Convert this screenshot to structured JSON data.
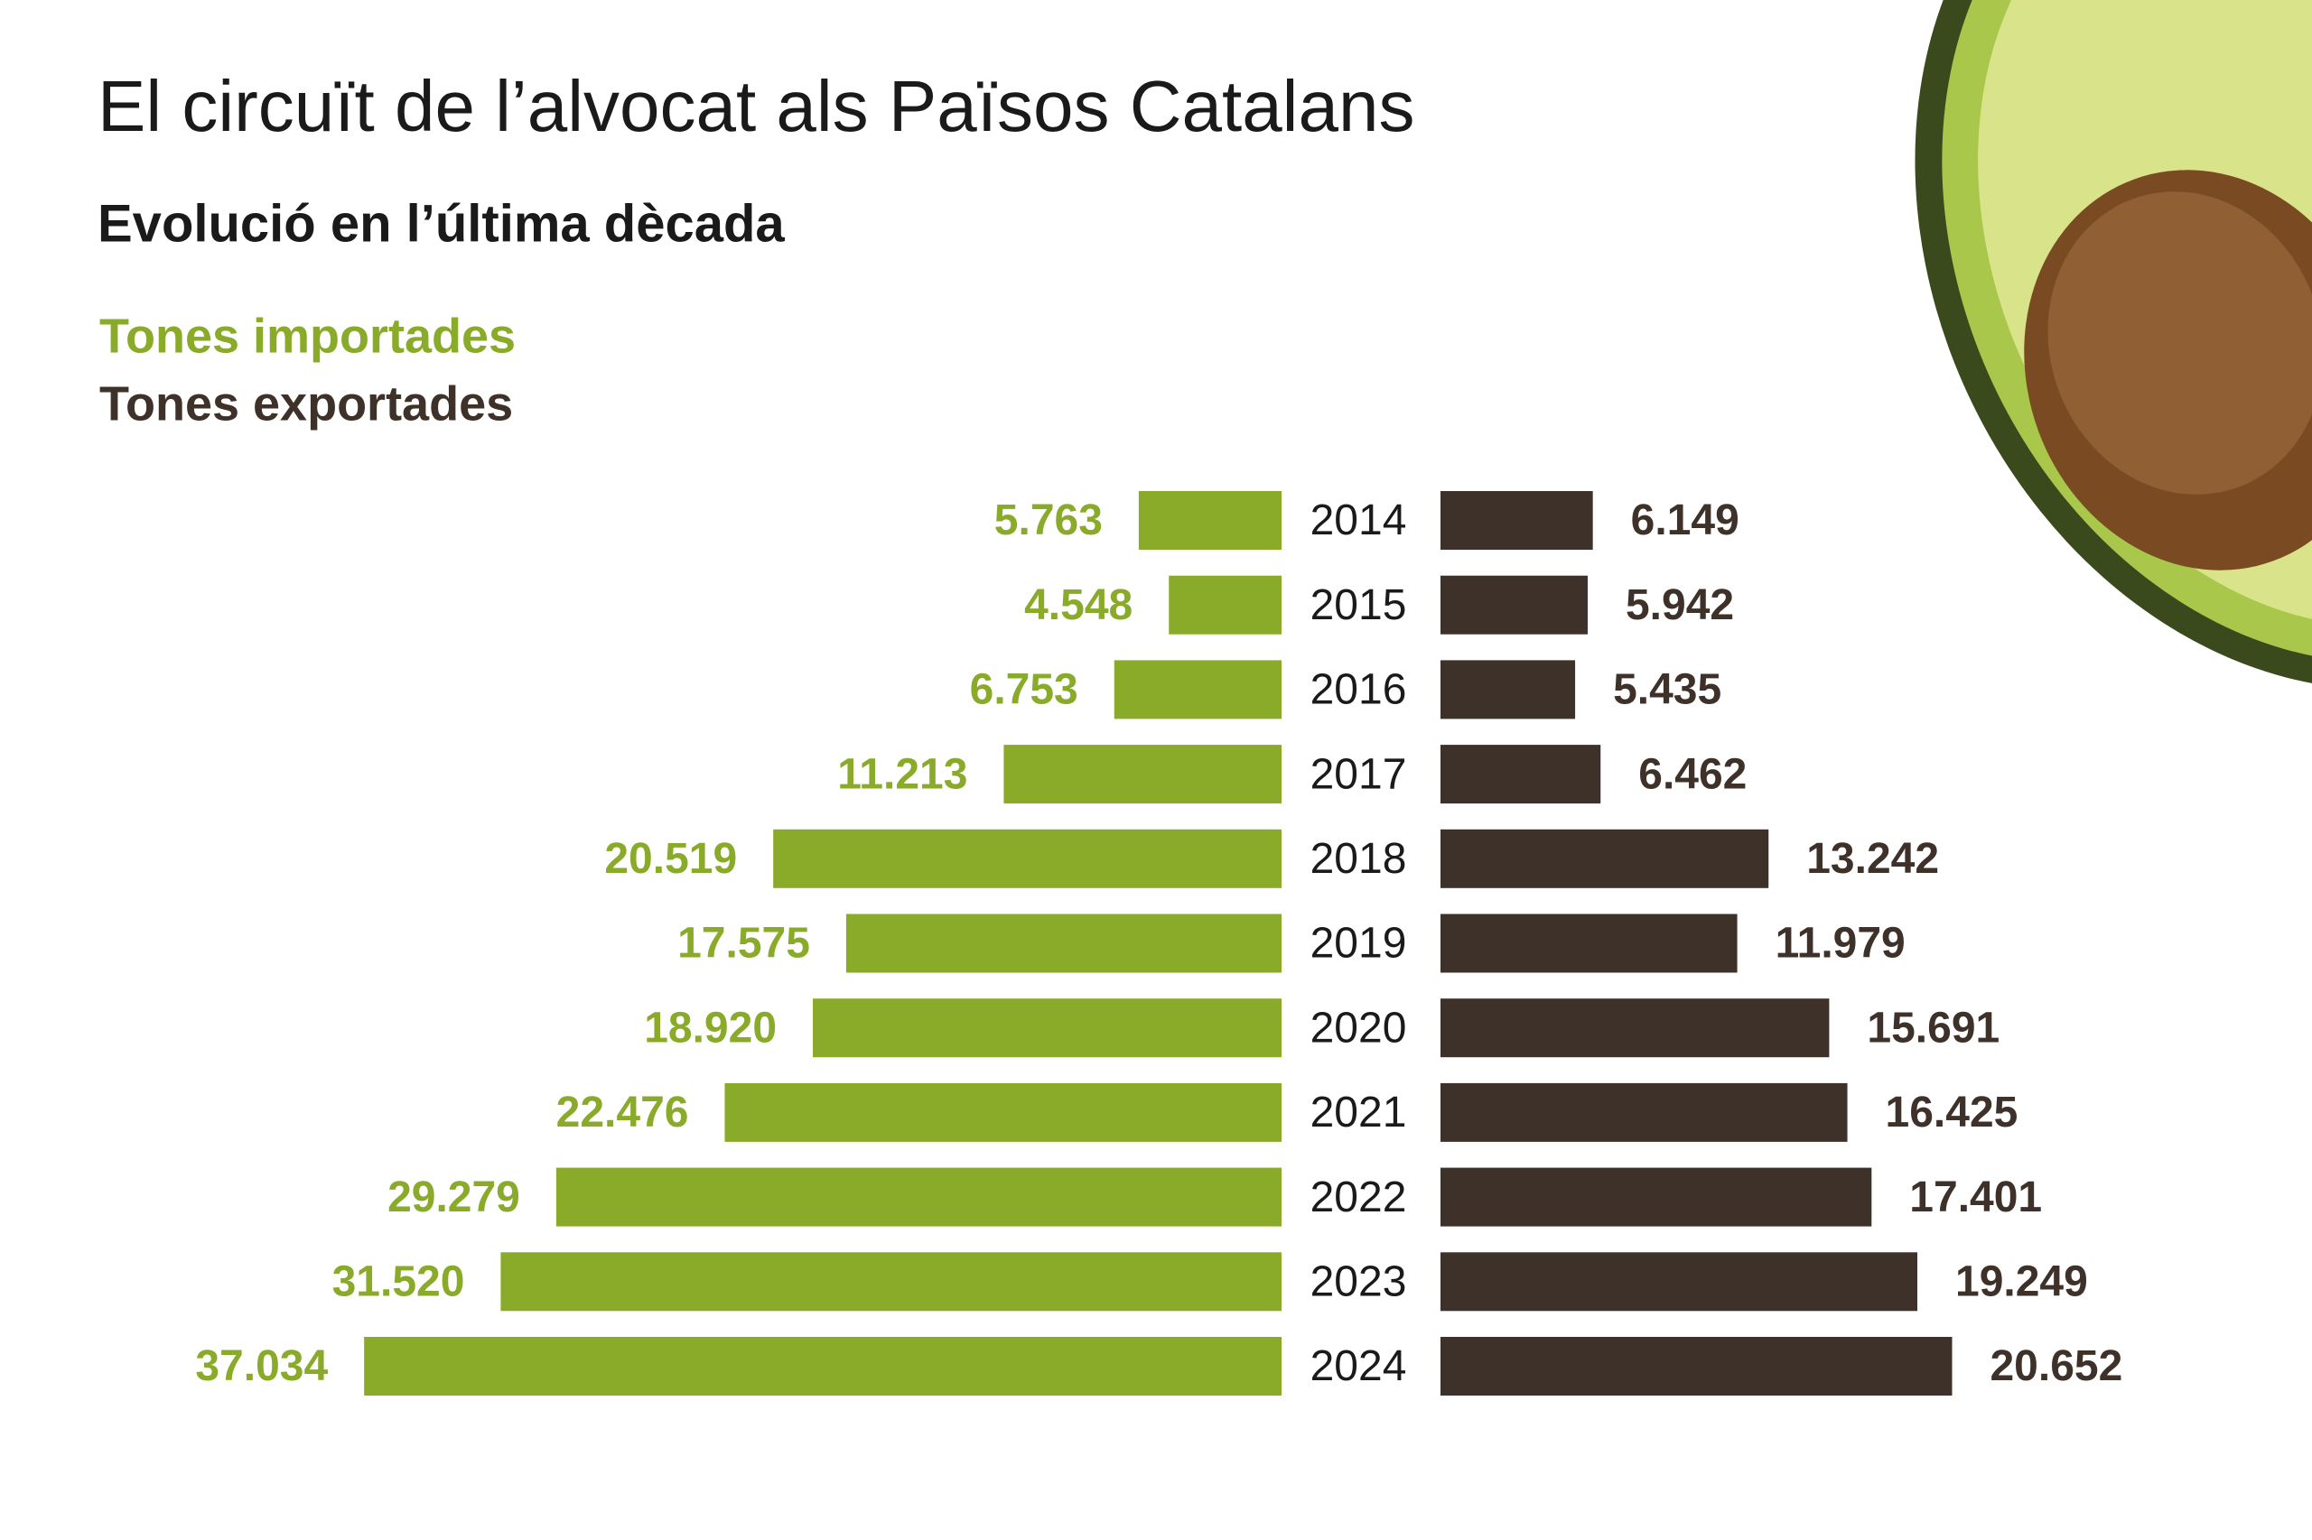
{
  "chart_data": {
    "type": "butterfly",
    "title": "El circuït de l’alvocat als Països Catalans",
    "subtitle": "Evolució en l’última dècada",
    "categories": [
      "2014",
      "2015",
      "2016",
      "2017",
      "2018",
      "2019",
      "2020",
      "2021",
      "2022",
      "2023",
      "2024"
    ],
    "series": [
      {
        "name": "Tones importades",
        "color": "#8aaa2a",
        "values": [
          5763,
          4548,
          6753,
          11213,
          20519,
          17575,
          18920,
          22476,
          29279,
          31520,
          37034
        ],
        "value_labels": [
          "5.763",
          "4.548",
          "6.753",
          "11.213",
          "20.519",
          "17.575",
          "18.920",
          "22.476",
          "29.279",
          "31.520",
          "37.034"
        ]
      },
      {
        "name": "Tones exportades",
        "color": "#3e3129",
        "values": [
          6149,
          5942,
          5435,
          6462,
          13242,
          11979,
          15691,
          16425,
          17401,
          19249,
          20652
        ],
        "value_labels": [
          "6.149",
          "5.942",
          "5.435",
          "6.462",
          "13.242",
          "11.979",
          "15.691",
          "16.425",
          "17.401",
          "19.249",
          "20.652"
        ]
      }
    ]
  }
}
